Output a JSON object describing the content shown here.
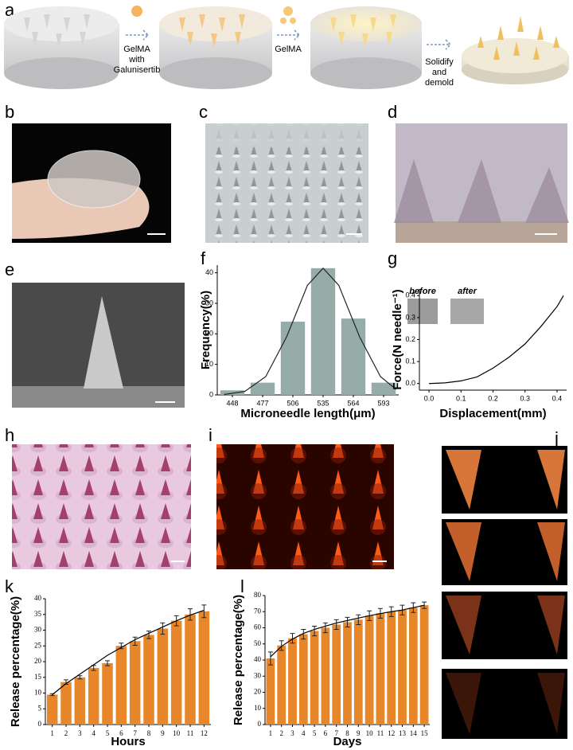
{
  "panel_labels": [
    "a",
    "b",
    "c",
    "d",
    "e",
    "f",
    "g",
    "h",
    "i",
    "j",
    "k",
    "l"
  ],
  "schematic": {
    "step1": [
      "GelMA",
      "with",
      "Galunisertib"
    ],
    "step2": [
      "GelMA"
    ],
    "step3": [
      "Solidify",
      "and",
      "demold"
    ]
  },
  "inset_labels": [
    "before",
    "after"
  ],
  "chart_data": [
    {
      "type": "bar",
      "x": [
        448,
        477,
        506,
        535,
        564,
        593
      ],
      "xlim": [
        433.5,
        607.5
      ],
      "xticks": [
        448,
        477,
        506,
        535,
        564,
        593
      ],
      "ylim": [
        0,
        42.5
      ],
      "yticks": [
        0,
        10,
        20,
        30,
        40
      ],
      "xlabel": "Microneedle length(μm)",
      "ylabel": "Frequency(%)",
      "series": [
        {
          "type": "bar",
          "color": "#95aca9",
          "values": [
            1.5,
            4,
            24,
            41.5,
            25,
            4
          ]
        },
        {
          "type": "line",
          "color": "#222222",
          "x": [
            440,
            460,
            480,
            500,
            520,
            535,
            550,
            570,
            590,
            605
          ],
          "values": [
            0.13,
            1.15,
            6,
            19,
            35.9,
            41.5,
            35.9,
            19,
            6,
            1.8
          ]
        }
      ]
    },
    {
      "type": "line",
      "x": [
        0,
        0.05,
        0.1,
        0.15,
        0.2,
        0.25,
        0.3,
        0.35,
        0.4,
        0.42
      ],
      "xlim": [
        -0.03,
        0.43
      ],
      "xticks": [
        {
          "value": 0,
          "label": "0.0"
        },
        0.1,
        0.2,
        0.3,
        0.4
      ],
      "ylim": [
        -0.03,
        0.43
      ],
      "yticks": [
        {
          "value": 0,
          "label": "0.0"
        },
        0.1,
        0.2,
        0.3,
        0.4
      ],
      "xlabel": "Displacement(mm)",
      "ylabel": "Force(N needle⁻¹)",
      "series": [
        {
          "type": "line",
          "color": "#000000",
          "values": [
            0,
            0.003,
            0.012,
            0.03,
            0.07,
            0.12,
            0.18,
            0.26,
            0.35,
            0.4
          ]
        }
      ]
    },
    {
      "type": "bar",
      "categories": [
        "1",
        "2",
        "3",
        "4",
        "5",
        "6",
        "7",
        "8",
        "9",
        "10",
        "11",
        "12"
      ],
      "ylim": [
        0,
        40
      ],
      "yticks": [
        0,
        5,
        10,
        15,
        20,
        25,
        30,
        35,
        40
      ],
      "xlabel": "Hours",
      "ylabel": "Release percentage(%)",
      "series": [
        {
          "type": "bar",
          "color": "#e8872a",
          "values": [
            9.5,
            13.5,
            15,
            18,
            19.5,
            25,
            26.5,
            28.5,
            30.5,
            33,
            35,
            36
          ],
          "errors": [
            0.3,
            0.7,
            0.5,
            0.8,
            0.8,
            0.9,
            1.3,
            1.2,
            1.8,
            1.6,
            1.8,
            2
          ]
        },
        {
          "type": "line",
          "color": "#000000",
          "values": [
            9.5,
            13,
            16,
            19,
            22,
            24.5,
            27,
            29,
            31,
            33,
            34.8,
            36.3
          ]
        }
      ]
    },
    {
      "type": "bar",
      "categories": [
        "1",
        "2",
        "3",
        "4",
        "5",
        "6",
        "7",
        "8",
        "9",
        "10",
        "11",
        "12",
        "13",
        "14",
        "15"
      ],
      "ylim": [
        0,
        80
      ],
      "yticks": [
        0,
        10,
        20,
        30,
        40,
        50,
        60,
        70,
        80
      ],
      "xlabel": "Days",
      "ylabel": "Release percentage(%)",
      "series": [
        {
          "type": "bar",
          "color": "#e8872a",
          "values": [
            41,
            49,
            53.5,
            56,
            58,
            60,
            62,
            63.5,
            65,
            67.5,
            69,
            70,
            71,
            72.5,
            74
          ],
          "errors": [
            4,
            3,
            3,
            3,
            3,
            3,
            3,
            3,
            3,
            3,
            3,
            3,
            3,
            3,
            2
          ]
        },
        {
          "type": "line",
          "color": "#000000",
          "values": [
            42,
            48.5,
            53,
            56.5,
            59,
            61,
            63,
            64.5,
            66,
            67.5,
            68.8,
            70,
            71,
            72.5,
            74
          ]
        }
      ]
    }
  ]
}
